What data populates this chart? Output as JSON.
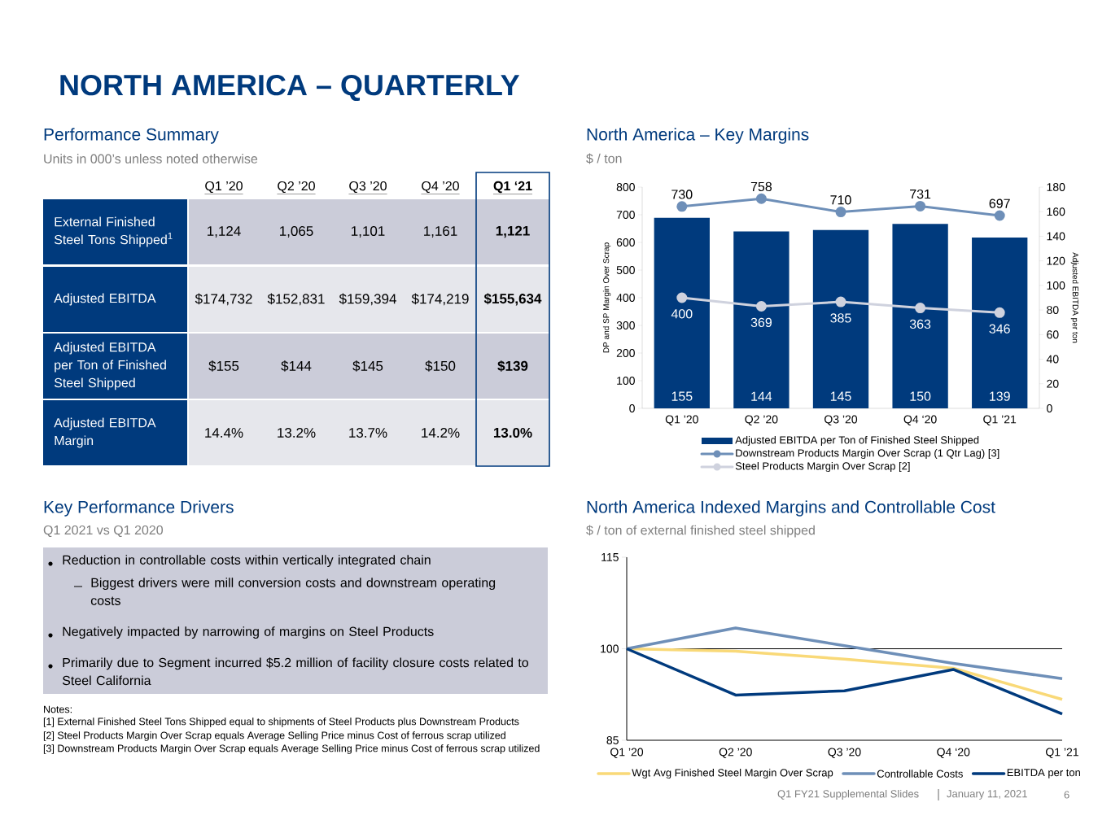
{
  "chart_data": [
    {
      "type": "other",
      "title": "Performance Summary",
      "subtitle": "Units in 000’s unless noted otherwise",
      "categories": [
        "Q1 ’20",
        "Q2 ’20",
        "Q3 ’20",
        "Q4 ’20",
        "Q1 ‘21"
      ],
      "y_categories": [
        "External Finished Steel Tons Shipped$^{1}$",
        "Adjusted EBITDA",
        "Adjusted EBITDA per Ton of Finished Steel Shipped",
        "Adjusted EBITDA Margin"
      ],
      "cell_labels": [
        [
          "1,124",
          "1,065",
          "1,101",
          "1,161",
          "1,121"
        ],
        [
          "$174,732",
          "$152,831",
          "$159,394",
          "$174,219",
          "$155,634"
        ],
        [
          "$155",
          "$144",
          "$145",
          "$150",
          "$139"
        ],
        [
          "14.4%",
          "13.2%",
          "13.7%",
          "14.2%",
          "13.0%"
        ]
      ],
      "annotations": [
        "NORTH AMERICA – QUARTERLY",
        "Notes:",
        "[1] External Finished Steel Tons Shipped equal to shipments of Steel Products plus Downstream Products",
        "[2] Steel Products Margin Over Scrap equals Average Selling Price minus Cost of ferrous scrap utilized",
        "[3] Downstream Products Margin Over Scrap equals Average Selling Price minus Cost of ferrous scrap utilized",
        "Q1 FY21 Supplemental Slides",
        "January 11, 2021",
        "6"
      ]
    },
    {
      "type": "bar",
      "title": "North America – Key Margins",
      "subtitle": "$ / ton",
      "categories": [
        "Q1 ’20",
        "Q2 ’20",
        "Q3 ’20",
        "Q4 ‘20",
        "Q1 ’21"
      ],
      "ylabel": "DP and SP Margin Over Scrap",
      "y2label": "Adjusted EBITDA per ton",
      "ylim": [
        0,
        800
      ],
      "yticks": [
        0,
        100,
        200,
        300,
        400,
        500,
        600,
        700,
        800
      ],
      "y2lim": [
        0,
        180
      ],
      "y2ticks": [
        0,
        20,
        40,
        60,
        80,
        100,
        120,
        140,
        160,
        180
      ],
      "series": [
        {
          "name": "Adjusted EBITDA per Ton of Finished Steel Shipped",
          "type": "bar",
          "axis": "y2",
          "color": "#003a7d",
          "values": [
            155,
            144,
            145,
            150,
            139
          ]
        },
        {
          "name": "Downstream Products Margin Over Scrap (1 Qtr Lag) [3]",
          "type": "line",
          "marker": "circle",
          "color": "#6e8fb8",
          "values": [
            730,
            758,
            710,
            731,
            697
          ]
        },
        {
          "name": "Steel Products Margin Over Scrap [2]",
          "type": "line",
          "marker": "circle",
          "color": "#cfd2de",
          "values": [
            400,
            369,
            385,
            363,
            346
          ]
        }
      ],
      "data_labels": true,
      "legend": "bottom"
    },
    {
      "type": "other",
      "title": "Key Performance Drivers",
      "subtitle": "Q1 2021 vs Q1 2020",
      "annotations": [
        "Reduction in controllable costs within vertically integrated chain",
        "Biggest drivers were mill conversion costs and downstream operating costs",
        "Negatively impacted by narrowing of margins on Steel Products",
        "Primarily due to Segment incurred $5.2 million of facility closure costs related to Steel California"
      ]
    },
    {
      "type": "line",
      "title": "North America Indexed Margins and Controllable Cost",
      "subtitle": "$ / ton of external finished steel shipped",
      "categories": [
        "Q1 ’20",
        "Q2 ’20",
        "Q3 ’20",
        "Q4 ‘20",
        "Q1 ’21"
      ],
      "ylim": [
        85,
        115
      ],
      "yticks": [
        85,
        100,
        115
      ],
      "ref_lines": [
        {
          "axis": "y",
          "value": 100,
          "color": "#000000"
        }
      ],
      "series": [
        {
          "name": "Wgt Avg Finished Steel Margin Over Scrap",
          "color": "#f9d978",
          "values": [
            100,
            99.6,
            98.3,
            96.8,
            91.7
          ]
        },
        {
          "name": "Controllable Costs",
          "color": "#6e8fb8",
          "values": [
            100,
            103.4,
            100.5,
            97.6,
            95.1
          ]
        },
        {
          "name": "EBITDA per ton",
          "color": "#003a7d",
          "values": [
            100,
            92.4,
            93.1,
            96.6,
            89.3
          ]
        }
      ],
      "legend": "bottom"
    }
  ]
}
